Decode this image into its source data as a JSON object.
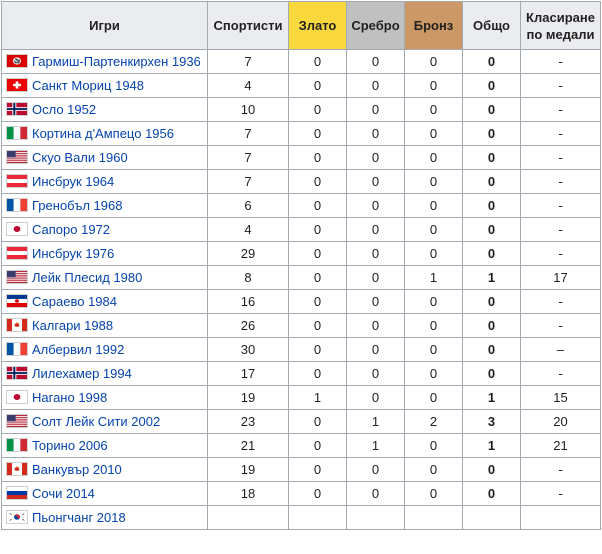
{
  "headers": {
    "games": "Игри",
    "athletes": "Спортисти",
    "gold": "Злато",
    "silver": "Сребро",
    "bronze": "Бронз",
    "total": "Общо",
    "rank": "Класиране по медали"
  },
  "colors": {
    "gold": "#f9d83e",
    "silver": "#c0c0c0",
    "bronze": "#cc9966",
    "link": "#0645ad"
  },
  "rows": [
    {
      "flag": "nazi-germany",
      "games": "Гармиш-Партенкирхен 1936",
      "athletes": "7",
      "gold": "0",
      "silver": "0",
      "bronze": "0",
      "total": "0",
      "rank": "-"
    },
    {
      "flag": "switzerland",
      "games": "Санкт Мориц 1948",
      "athletes": "4",
      "gold": "0",
      "silver": "0",
      "bronze": "0",
      "total": "0",
      "rank": "-"
    },
    {
      "flag": "norway",
      "games": "Осло 1952",
      "athletes": "10",
      "gold": "0",
      "silver": "0",
      "bronze": "0",
      "total": "0",
      "rank": "-"
    },
    {
      "flag": "italy",
      "games": "Кортина д'Ампецо 1956",
      "athletes": "7",
      "gold": "0",
      "silver": "0",
      "bronze": "0",
      "total": "0",
      "rank": "-"
    },
    {
      "flag": "usa",
      "games": "Скуо Вали 1960",
      "athletes": "7",
      "gold": "0",
      "silver": "0",
      "bronze": "0",
      "total": "0",
      "rank": "-"
    },
    {
      "flag": "austria",
      "games": "Инсбрук 1964",
      "athletes": "7",
      "gold": "0",
      "silver": "0",
      "bronze": "0",
      "total": "0",
      "rank": "-"
    },
    {
      "flag": "france",
      "games": "Гренобъл 1968",
      "athletes": "6",
      "gold": "0",
      "silver": "0",
      "bronze": "0",
      "total": "0",
      "rank": "-"
    },
    {
      "flag": "japan",
      "games": "Сапоро 1972",
      "athletes": "4",
      "gold": "0",
      "silver": "0",
      "bronze": "0",
      "total": "0",
      "rank": "-"
    },
    {
      "flag": "austria",
      "games": "Инсбрук 1976",
      "athletes": "29",
      "gold": "0",
      "silver": "0",
      "bronze": "0",
      "total": "0",
      "rank": "-"
    },
    {
      "flag": "usa",
      "games": "Лейк Плесид 1980",
      "athletes": "8",
      "gold": "0",
      "silver": "0",
      "bronze": "1",
      "total": "1",
      "rank": "17"
    },
    {
      "flag": "yugoslavia",
      "games": "Сараево 1984",
      "athletes": "16",
      "gold": "0",
      "silver": "0",
      "bronze": "0",
      "total": "0",
      "rank": "-"
    },
    {
      "flag": "canada",
      "games": "Калгари 1988",
      "athletes": "26",
      "gold": "0",
      "silver": "0",
      "bronze": "0",
      "total": "0",
      "rank": "-"
    },
    {
      "flag": "france",
      "games": "Албервил 1992",
      "athletes": "30",
      "gold": "0",
      "silver": "0",
      "bronze": "0",
      "total": "0",
      "rank": "–"
    },
    {
      "flag": "norway",
      "games": "Лилехамер 1994",
      "athletes": "17",
      "gold": "0",
      "silver": "0",
      "bronze": "0",
      "total": "0",
      "rank": "-"
    },
    {
      "flag": "japan",
      "games": "Нагано 1998",
      "athletes": "19",
      "gold": "1",
      "silver": "0",
      "bronze": "0",
      "total": "1",
      "rank": "15"
    },
    {
      "flag": "usa",
      "games": "Солт Лейк Сити 2002",
      "athletes": "23",
      "gold": "0",
      "silver": "1",
      "bronze": "2",
      "total": "3",
      "rank": "20"
    },
    {
      "flag": "italy",
      "games": "Торино 2006",
      "athletes": "21",
      "gold": "0",
      "silver": "1",
      "bronze": "0",
      "total": "1",
      "rank": "21"
    },
    {
      "flag": "canada",
      "games": "Ванкувър 2010",
      "athletes": "19",
      "gold": "0",
      "silver": "0",
      "bronze": "0",
      "total": "0",
      "rank": "-"
    },
    {
      "flag": "russia",
      "games": "Сочи 2014",
      "athletes": "18",
      "gold": "0",
      "silver": "0",
      "bronze": "0",
      "total": "0",
      "rank": "-"
    },
    {
      "flag": "south-korea",
      "games": "Пьонгчанг 2018",
      "athletes": "",
      "gold": "",
      "silver": "",
      "bronze": "",
      "total": "",
      "rank": ""
    }
  ]
}
